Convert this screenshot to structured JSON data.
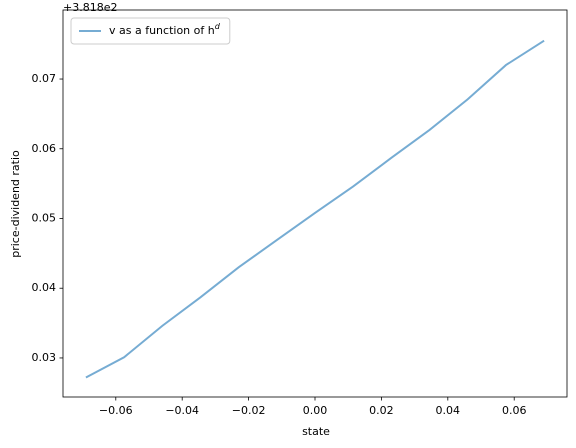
{
  "chart_data": {
    "type": "line",
    "offset_label": "+3.818e2",
    "xlabel": "state",
    "ylabel": "price-dividend ratio",
    "x": [
      -0.069,
      -0.0575,
      -0.046,
      -0.0345,
      -0.023,
      -0.0115,
      0,
      0.0115,
      0.023,
      0.0345,
      0.046,
      0.0575,
      0.069
    ],
    "series": [
      {
        "name": "v as a function of h^d",
        "color": "#76acd3",
        "values": [
          0.0272,
          0.0301,
          0.0346,
          0.0387,
          0.043,
          0.0469,
          0.0508,
          0.0546,
          0.0587,
          0.0627,
          0.0671,
          0.072,
          0.0755
        ]
      }
    ],
    "xlim": [
      -0.0759,
      0.0759
    ],
    "xticks": [
      {
        "value": -0.06,
        "label": "−0.06"
      },
      {
        "value": -0.04,
        "label": "−0.04"
      },
      {
        "value": -0.02,
        "label": "−0.02"
      },
      {
        "value": 0,
        "label": "0.00"
      },
      0.02,
      0.04,
      0.06
    ],
    "ylim": [
      0.0244,
      0.0799
    ],
    "yticks": [
      0.03,
      0.04,
      0.05,
      0.06,
      0.07
    ],
    "grid": false,
    "legend": "upper left"
  }
}
